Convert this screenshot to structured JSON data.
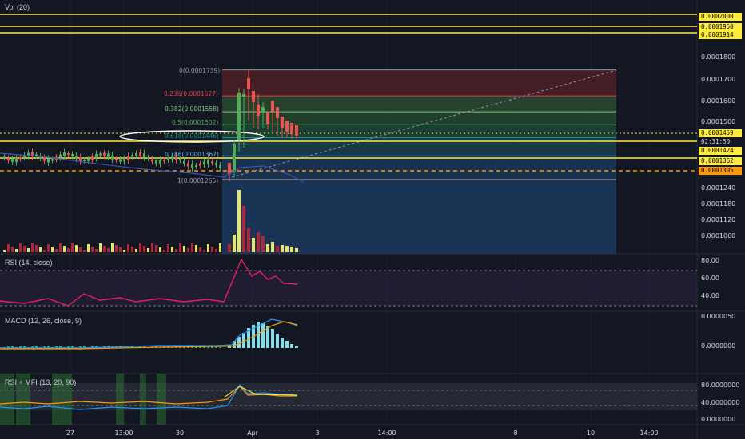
{
  "panes": {
    "volume": {
      "label": "Vol (20)"
    },
    "rsi": {
      "label": "RSI (14, close)"
    },
    "macd": {
      "label": "MACD (12, 26, close, 9)"
    },
    "rsimfi": {
      "label": "RSI + MFI (13, 20, 90)"
    }
  },
  "price_tags": [
    {
      "text": "0.0002000",
      "bg": "#ffeb3b",
      "fg": "#000000"
    },
    {
      "text": "0.0001950",
      "bg": "#ffeb3b",
      "fg": "#000000"
    },
    {
      "text": "0.0001914",
      "bg": "#ffeb3b",
      "fg": "#000000"
    },
    {
      "text": "0.0001459",
      "bg": "#ffeb3b",
      "fg": "#000000"
    },
    {
      "text": "02:31:50",
      "bg": "#131722",
      "fg": "#d1d4dc"
    },
    {
      "text": "0.0001424",
      "bg": "#ffeb3b",
      "fg": "#000000"
    },
    {
      "text": "0.0001362",
      "bg": "#ffeb3b",
      "fg": "#000000"
    },
    {
      "text": "0.0001305",
      "bg": "#ff9800",
      "fg": "#000000"
    }
  ],
  "price_axis": [
    "0.0001800",
    "0.0001700",
    "0.0001600",
    "0.0001500",
    "0.0001240",
    "0.0001180",
    "0.0001120",
    "0.0001060"
  ],
  "rsi_axis": [
    "80.00",
    "60.00",
    "40.00"
  ],
  "macd_axis": [
    "0.0000050",
    "0.0000000"
  ],
  "rsimfi_axis": [
    "80.0000000",
    "40.0000000",
    "0.0000000"
  ],
  "fib_labels": [
    {
      "text": "0(0.0001739)",
      "color": "#9598a1"
    },
    {
      "text": "0.236(0.0001627)",
      "color": "#f23645"
    },
    {
      "text": "0.382(0.0001558)",
      "color": "#81c784"
    },
    {
      "text": "0.5(0.0001502)",
      "color": "#4caf50"
    },
    {
      "text": "0.618(0.0001446)",
      "color": "#089981"
    },
    {
      "text": "0.786(0.0001367)",
      "color": "#64b5f6"
    },
    {
      "text": "1(0.0001265)",
      "color": "#9598a1"
    }
  ],
  "time_axis": [
    "27",
    "13:00",
    "30",
    "Apr",
    "3",
    "14:00",
    "8",
    "10",
    "14:00"
  ],
  "chart_data": {
    "type": "candlestick",
    "fib_levels": [
      0,
      0.236,
      0.382,
      0.5,
      0.618,
      0.786,
      1
    ],
    "fib_prices": [
      0.0001739,
      0.0001627,
      0.0001558,
      0.0001502,
      0.0001446,
      0.0001367,
      0.0001265
    ],
    "horizontal_lines": [
      0.0002,
      0.000195,
      0.0001914,
      0.0001424,
      0.0001362
    ],
    "colors": {
      "up": "#4caf50",
      "down": "#ef5350",
      "vol_up": "#e8e46a",
      "vol_down": "#b2263a",
      "fib_fill": "#1e4976",
      "rsi": "#e91e63",
      "macd": "#2196f3",
      "signal": "#ff9800",
      "hist": "#80deea"
    }
  }
}
